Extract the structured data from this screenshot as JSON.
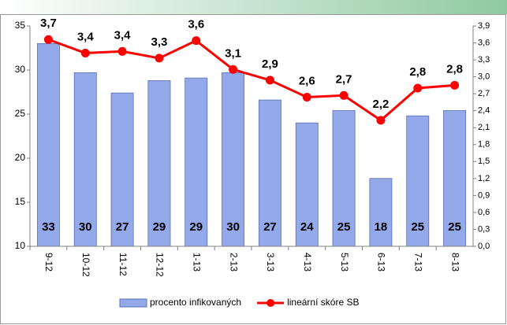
{
  "chart_data": {
    "type": "bar",
    "categories": [
      "9-12",
      "10-12",
      "11-12",
      "12-12",
      "1-13",
      "2-13",
      "3-13",
      "4-13",
      "5-13",
      "6-13",
      "7-13",
      "8-13"
    ],
    "series": [
      {
        "name": "procento infikovaných",
        "type": "bar",
        "color": "#93a9ea",
        "values": [
          33,
          29.7,
          27.4,
          28.8,
          29.1,
          29.7,
          26.6,
          24.0,
          25.4,
          17.7,
          24.8,
          25.4
        ],
        "value_labels": [
          "33",
          "30",
          "27",
          "29",
          "29",
          "30",
          "27",
          "24",
          "25",
          "18",
          "25",
          "25"
        ]
      },
      {
        "name": "lineární skóre SB",
        "type": "line",
        "axis": "y2",
        "color": "#ff0000",
        "values": [
          3.66,
          3.42,
          3.45,
          3.33,
          3.64,
          3.13,
          2.94,
          2.64,
          2.67,
          2.23,
          2.8,
          2.85
        ],
        "value_labels": [
          "3,7",
          "3,4",
          "3,4",
          "3,3",
          "3,6",
          "3,1",
          "2,9",
          "2,6",
          "2,7",
          "2,2",
          "2,8",
          "2,8"
        ]
      }
    ],
    "ylim": [
      10,
      35
    ],
    "yticks": [
      10,
      15,
      20,
      25,
      30,
      35
    ],
    "y2lim": [
      0,
      3.9
    ],
    "y2ticks": [
      {
        "value": 0,
        "label": "0,0"
      },
      {
        "value": 0.3,
        "label": "0,3"
      },
      {
        "value": 0.6,
        "label": "0,6"
      },
      {
        "value": 0.9,
        "label": "0,9"
      },
      {
        "value": 1.2,
        "label": "1,2"
      },
      {
        "value": 1.5,
        "label": "1,5"
      },
      {
        "value": 1.8,
        "label": "1,8"
      },
      {
        "value": 2.1,
        "label": "2,1"
      },
      {
        "value": 2.4,
        "label": "2,4"
      },
      {
        "value": 2.7,
        "label": "2,7"
      },
      {
        "value": 3.0,
        "label": "3,0"
      },
      {
        "value": 3.3,
        "label": "3,3"
      },
      {
        "value": 3.6,
        "label": "3,6"
      },
      {
        "value": 3.9,
        "label": "3,9"
      }
    ],
    "grid": false,
    "legend": "bottom"
  }
}
